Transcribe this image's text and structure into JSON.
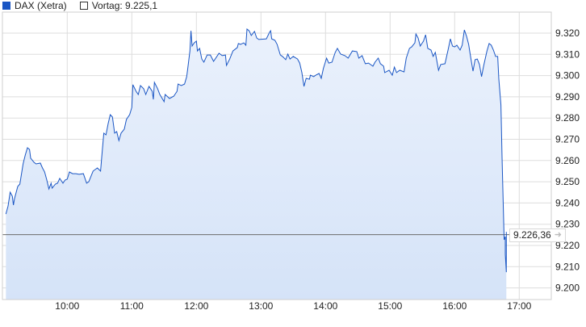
{
  "legend": {
    "series_label": "DAX (Xetra)",
    "reference_label": "Vortag: 9.225,1"
  },
  "last_value_label": "9.226,36",
  "colors": {
    "line": "#1a56c4",
    "fill_top": "#eaf1fc",
    "fill_bottom": "#d5e3f8",
    "reference_line": "#6b6b6b",
    "grid": "#dddddd"
  },
  "chart_data": {
    "type": "area",
    "title": "",
    "xlabel": "",
    "ylabel": "",
    "ylim": [
      9195,
      9330
    ],
    "xlim": [
      "09:00",
      "17:30"
    ],
    "grid": true,
    "legend_position": "top-left",
    "y_axis_position": "right",
    "x_ticks": [
      "10:00",
      "11:00",
      "12:00",
      "13:00",
      "14:00",
      "15:00",
      "16:00",
      "17:00"
    ],
    "y_ticks": [
      9200,
      9210,
      9220,
      9230,
      9240,
      9250,
      9260,
      9270,
      9280,
      9290,
      9300,
      9310,
      9320
    ],
    "y_tick_labels": [
      "9.200",
      "9.210",
      "9.220",
      "9.230",
      "9.240",
      "9.250",
      "9.260",
      "9.270",
      "9.280",
      "9.290",
      "9.300",
      "9.310",
      "9.320"
    ],
    "reference_line": {
      "name": "Vortag",
      "value": 9225.1
    },
    "last_value": 9226.36,
    "series": [
      {
        "name": "DAX (Xetra)",
        "points": [
          [
            "09:03",
            9234.8
          ],
          [
            "09:05",
            9238.6
          ],
          [
            "09:07",
            9245.1
          ],
          [
            "09:09",
            9243.2
          ],
          [
            "09:10",
            9239.0
          ],
          [
            "09:11",
            9242.1
          ],
          [
            "09:14",
            9247.8
          ],
          [
            "09:16",
            9248.9
          ],
          [
            "09:19",
            9258.4
          ],
          [
            "09:21",
            9262.6
          ],
          [
            "09:23",
            9266.0
          ],
          [
            "09:25",
            9265.2
          ],
          [
            "09:26",
            9261.1
          ],
          [
            "09:29",
            9259.2
          ],
          [
            "09:31",
            9258.4
          ],
          [
            "09:35",
            9258.8
          ],
          [
            "09:37",
            9256.5
          ],
          [
            "09:39",
            9254.6
          ],
          [
            "09:41",
            9250.8
          ],
          [
            "09:43",
            9246.6
          ],
          [
            "09:45",
            9249.3
          ],
          [
            "09:46",
            9247.0
          ],
          [
            "09:49",
            9248.9
          ],
          [
            "09:51",
            9249.3
          ],
          [
            "09:53",
            9251.6
          ],
          [
            "09:56",
            9249.3
          ],
          [
            "09:58",
            9250.8
          ],
          [
            "10:00",
            9251.2
          ],
          [
            "10:02",
            9254.6
          ],
          [
            "10:05",
            9253.8
          ],
          [
            "10:08",
            9253.8
          ],
          [
            "10:11",
            9253.5
          ],
          [
            "10:15",
            9253.8
          ],
          [
            "10:18",
            9249.3
          ],
          [
            "10:20",
            9250.0
          ],
          [
            "10:24",
            9255.0
          ],
          [
            "10:28",
            9256.5
          ],
          [
            "10:31",
            9255.0
          ],
          [
            "10:32",
            9261.5
          ],
          [
            "10:34",
            9272.9
          ],
          [
            "10:36",
            9272.1
          ],
          [
            "10:38",
            9277.4
          ],
          [
            "10:40",
            9281.6
          ],
          [
            "10:42",
            9280.5
          ],
          [
            "10:44",
            9272.9
          ],
          [
            "10:46",
            9273.6
          ],
          [
            "10:48",
            9269.4
          ],
          [
            "10:50",
            9272.9
          ],
          [
            "10:53",
            9274.8
          ],
          [
            "10:55",
            9279.3
          ],
          [
            "10:58",
            9281.6
          ],
          [
            "11:00",
            9285.0
          ],
          [
            "11:01",
            9295.7
          ],
          [
            "11:04",
            9292.6
          ],
          [
            "11:06",
            9291.1
          ],
          [
            "11:08",
            9295.3
          ],
          [
            "11:11",
            9293.8
          ],
          [
            "11:13",
            9291.1
          ],
          [
            "11:16",
            9294.9
          ],
          [
            "11:19",
            9292.6
          ],
          [
            "11:20",
            9288.8
          ],
          [
            "11:21",
            9296.8
          ],
          [
            "11:24",
            9293.8
          ],
          [
            "11:26",
            9291.1
          ],
          [
            "11:30",
            9287.7
          ],
          [
            "11:31",
            9291.1
          ],
          [
            "11:35",
            9289.2
          ],
          [
            "11:39",
            9290.3
          ],
          [
            "11:42",
            9292.6
          ],
          [
            "11:43",
            9296.0
          ],
          [
            "11:46",
            9295.3
          ],
          [
            "11:49",
            9296.0
          ],
          [
            "11:51",
            9299.5
          ],
          [
            "11:52",
            9303.3
          ],
          [
            "11:54",
            9311.6
          ],
          [
            "11:55",
            9321.1
          ],
          [
            "11:56",
            9313.9
          ],
          [
            "11:58",
            9315.4
          ],
          [
            "12:00",
            9316.2
          ],
          [
            "12:01",
            9311.6
          ],
          [
            "12:03",
            9312.8
          ],
          [
            "12:05",
            9307.8
          ],
          [
            "12:07",
            9306.3
          ],
          [
            "12:10",
            9309.7
          ],
          [
            "12:13",
            9309.7
          ],
          [
            "12:16",
            9306.7
          ],
          [
            "12:21",
            9310.5
          ],
          [
            "12:24",
            9309.4
          ],
          [
            "12:27",
            9309.7
          ],
          [
            "12:28",
            9304.8
          ],
          [
            "12:31",
            9307.8
          ],
          [
            "12:34",
            9311.6
          ],
          [
            "12:38",
            9313.2
          ],
          [
            "12:39",
            9315.1
          ],
          [
            "12:41",
            9314.7
          ],
          [
            "12:44",
            9315.4
          ],
          [
            "12:46",
            9314.3
          ],
          [
            "12:47",
            9321.9
          ],
          [
            "12:49",
            9321.1
          ],
          [
            "12:51",
            9318.9
          ],
          [
            "12:54",
            9320.8
          ],
          [
            "12:56",
            9317.7
          ],
          [
            "12:58",
            9317.0
          ],
          [
            "13:05",
            9317.3
          ],
          [
            "13:08",
            9320.4
          ],
          [
            "13:09",
            9321.1
          ],
          [
            "13:10",
            9317.3
          ],
          [
            "13:13",
            9316.6
          ],
          [
            "13:15",
            9314.7
          ],
          [
            "13:18",
            9309.7
          ],
          [
            "13:20",
            9309.0
          ],
          [
            "13:23",
            9307.5
          ],
          [
            "13:25",
            9310.1
          ],
          [
            "13:27",
            9307.8
          ],
          [
            "13:30",
            9309.0
          ],
          [
            "13:34",
            9307.8
          ],
          [
            "13:36",
            9305.9
          ],
          [
            "13:38",
            9301.4
          ],
          [
            "13:40",
            9294.9
          ],
          [
            "13:42",
            9298.7
          ],
          [
            "13:45",
            9298.3
          ],
          [
            "13:46",
            9300.2
          ],
          [
            "13:49",
            9299.5
          ],
          [
            "13:51",
            9300.2
          ],
          [
            "13:54",
            9301.0
          ],
          [
            "13:56",
            9298.7
          ],
          [
            "13:58",
            9303.3
          ],
          [
            "14:01",
            9308.2
          ],
          [
            "14:03",
            9305.9
          ],
          [
            "14:06",
            9306.3
          ],
          [
            "14:09",
            9310.9
          ],
          [
            "14:11",
            9312.8
          ],
          [
            "14:14",
            9310.1
          ],
          [
            "14:18",
            9309.4
          ],
          [
            "14:21",
            9308.2
          ],
          [
            "14:25",
            9311.6
          ],
          [
            "14:29",
            9311.3
          ],
          [
            "14:31",
            9308.2
          ],
          [
            "14:34",
            9309.4
          ],
          [
            "14:37",
            9305.6
          ],
          [
            "14:40",
            9305.9
          ],
          [
            "14:44",
            9304.4
          ],
          [
            "14:46",
            9306.3
          ],
          [
            "14:49",
            9308.2
          ],
          [
            "14:51",
            9305.6
          ],
          [
            "14:54",
            9304.4
          ],
          [
            "14:55",
            9301.4
          ],
          [
            "14:59",
            9302.5
          ],
          [
            "15:02",
            9300.2
          ],
          [
            "15:04",
            9304.0
          ],
          [
            "15:06",
            9301.4
          ],
          [
            "15:09",
            9302.5
          ],
          [
            "15:13",
            9301.7
          ],
          [
            "15:15",
            9308.2
          ],
          [
            "15:18",
            9312.8
          ],
          [
            "15:20",
            9313.5
          ],
          [
            "15:23",
            9315.4
          ],
          [
            "15:24",
            9319.6
          ],
          [
            "15:26",
            9317.7
          ],
          [
            "15:28",
            9313.9
          ],
          [
            "15:31",
            9316.2
          ],
          [
            "15:33",
            9319.2
          ],
          [
            "15:35",
            9312.8
          ],
          [
            "15:38",
            9312.0
          ],
          [
            "15:40",
            9309.0
          ],
          [
            "15:42",
            9310.9
          ],
          [
            "15:45",
            9302.5
          ],
          [
            "15:47",
            9305.2
          ],
          [
            "15:51",
            9305.6
          ],
          [
            "15:54",
            9312.4
          ],
          [
            "15:56",
            9317.3
          ],
          [
            "15:58",
            9313.9
          ],
          [
            "16:00",
            9313.5
          ],
          [
            "16:02",
            9314.3
          ],
          [
            "16:05",
            9312.0
          ],
          [
            "16:07",
            9314.3
          ],
          [
            "16:09",
            9321.5
          ],
          [
            "16:11",
            9318.5
          ],
          [
            "16:13",
            9314.7
          ],
          [
            "16:15",
            9308.2
          ],
          [
            "16:17",
            9302.1
          ],
          [
            "16:19",
            9307.5
          ],
          [
            "16:21",
            9307.8
          ],
          [
            "16:23",
            9305.2
          ],
          [
            "16:25",
            9299.5
          ],
          [
            "16:27",
            9304.8
          ],
          [
            "16:30",
            9311.6
          ],
          [
            "16:32",
            9315.1
          ],
          [
            "16:34",
            9314.3
          ],
          [
            "16:36",
            9312.0
          ],
          [
            "16:38",
            9309.0
          ],
          [
            "16:40",
            9309.0
          ],
          [
            "16:41",
            9298.3
          ],
          [
            "16:43",
            9286.2
          ],
          [
            "16:44",
            9261.4
          ],
          [
            "16:45",
            9241.7
          ],
          [
            "16:46",
            9222.7
          ],
          [
            "16:47",
            9224.2
          ],
          [
            "16:47",
            9215.8
          ],
          [
            "16:48",
            9207.4
          ],
          [
            "16:48",
            9226.4
          ]
        ]
      }
    ]
  }
}
